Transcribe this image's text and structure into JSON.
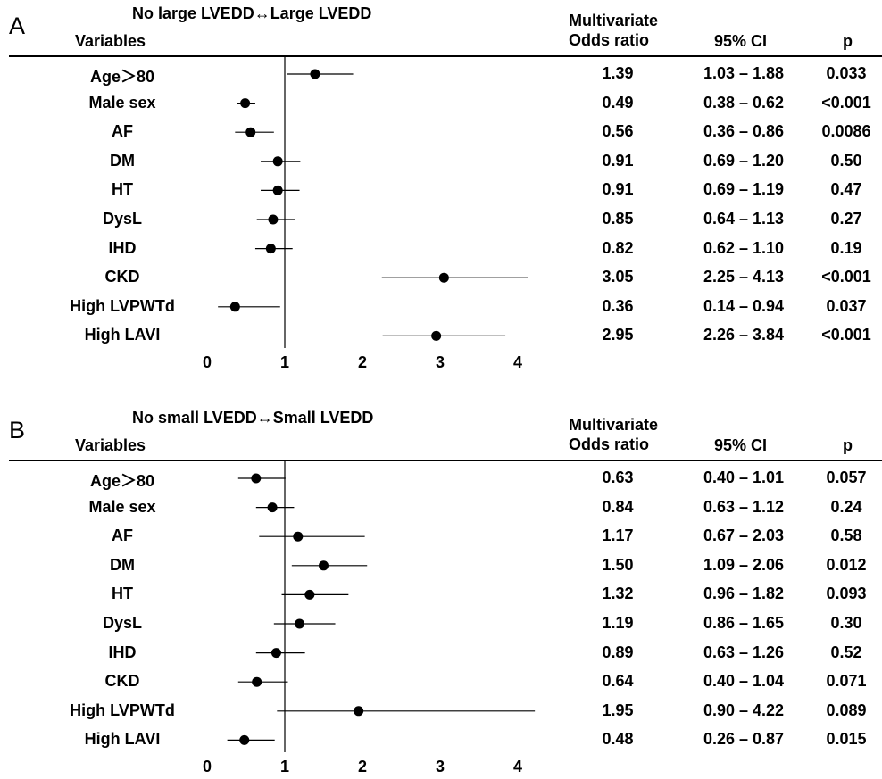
{
  "panels": [
    {
      "letter": "A",
      "title": "No large LVEDD↔Large LVEDD",
      "headers": {
        "variables": "Variables",
        "or_line1": "Multivariate",
        "or_line2": "Odds ratio",
        "ci": "95% CI",
        "p": "p"
      },
      "rows": [
        {
          "variable": "Age＞80",
          "or": "1.39",
          "ci": "1.03 – 1.88",
          "p": "0.033"
        },
        {
          "variable": "Male sex",
          "or": "0.49",
          "ci": "0.38 – 0.62",
          "p": "<0.001"
        },
        {
          "variable": "AF",
          "or": "0.56",
          "ci": "0.36 – 0.86",
          "p": "0.0086"
        },
        {
          "variable": "DM",
          "or": "0.91",
          "ci": "0.69 – 1.20",
          "p": "0.50"
        },
        {
          "variable": "HT",
          "or": "0.91",
          "ci": "0.69 – 1.19",
          "p": "0.47"
        },
        {
          "variable": "DysL",
          "or": "0.85",
          "ci": "0.64 – 1.13",
          "p": "0.27"
        },
        {
          "variable": "IHD",
          "or": "0.82",
          "ci": "0.62 – 1.10",
          "p": "0.19"
        },
        {
          "variable": "CKD",
          "or": "3.05",
          "ci": "2.25 – 4.13",
          "p": "<0.001"
        },
        {
          "variable": "High LVPWTd",
          "or": "0.36",
          "ci": "0.14 – 0.94",
          "p": "0.037"
        },
        {
          "variable": "High LAVI",
          "or": "2.95",
          "ci": "2.26 – 3.84",
          "p": "<0.001"
        }
      ]
    },
    {
      "letter": "B",
      "title": "No small LVEDD↔Small LVEDD",
      "headers": {
        "variables": "Variables",
        "or_line1": "Multivariate",
        "or_line2": "Odds ratio",
        "ci": "95% CI",
        "p": "p"
      },
      "rows": [
        {
          "variable": "Age＞80",
          "or": "0.63",
          "ci": "0.40 – 1.01",
          "p": "0.057"
        },
        {
          "variable": "Male sex",
          "or": "0.84",
          "ci": "0.63 – 1.12",
          "p": "0.24"
        },
        {
          "variable": "AF",
          "or": "1.17",
          "ci": "0.67 – 2.03",
          "p": "0.58"
        },
        {
          "variable": "DM",
          "or": "1.50",
          "ci": "1.09 – 2.06",
          "p": "0.012"
        },
        {
          "variable": "HT",
          "or": "1.32",
          "ci": "0.96 – 1.82",
          "p": "0.093"
        },
        {
          "variable": "DysL",
          "or": "1.19",
          "ci": "0.86 – 1.65",
          "p": "0.30"
        },
        {
          "variable": "IHD",
          "or": "0.89",
          "ci": "0.63 – 1.26",
          "p": "0.52"
        },
        {
          "variable": "CKD",
          "or": "0.64",
          "ci": "0.40 – 1.04",
          "p": "0.071"
        },
        {
          "variable": "High LVPWTd",
          "or": "1.95",
          "ci": "0.90 – 4.22",
          "p": "0.089"
        },
        {
          "variable": "High LAVI",
          "or": "0.48",
          "ci": "0.26 – 0.87",
          "p": "0.015"
        }
      ]
    }
  ],
  "chart_data": [
    {
      "type": "forest",
      "title": "No large LVEDD↔Large LVEDD",
      "categories": [
        "Age＞80",
        "Male sex",
        "AF",
        "DM",
        "HT",
        "DysL",
        "IHD",
        "CKD",
        "High LVPWTd",
        "High LAVI"
      ],
      "values": [
        1.39,
        0.49,
        0.56,
        0.91,
        0.91,
        0.85,
        0.82,
        3.05,
        0.36,
        2.95
      ],
      "ci_lower": [
        1.03,
        0.38,
        0.36,
        0.69,
        0.69,
        0.64,
        0.62,
        2.25,
        0.14,
        2.26
      ],
      "ci_upper": [
        1.88,
        0.62,
        0.86,
        1.2,
        1.19,
        1.13,
        1.1,
        4.13,
        0.94,
        3.84
      ],
      "reference_line": 1,
      "xlim": [
        0,
        4
      ],
      "xticks": [
        "0",
        "1",
        "2",
        "3",
        "4"
      ]
    },
    {
      "type": "forest",
      "title": "No small LVEDD↔Small LVEDD",
      "categories": [
        "Age＞80",
        "Male sex",
        "AF",
        "DM",
        "HT",
        "DysL",
        "IHD",
        "CKD",
        "High LVPWTd",
        "High LAVI"
      ],
      "values": [
        0.63,
        0.84,
        1.17,
        1.5,
        1.32,
        1.19,
        0.89,
        0.64,
        1.95,
        0.48
      ],
      "ci_lower": [
        0.4,
        0.63,
        0.67,
        1.09,
        0.96,
        0.86,
        0.63,
        0.4,
        0.9,
        0.26
      ],
      "ci_upper": [
        1.01,
        1.12,
        2.03,
        2.06,
        1.82,
        1.65,
        1.26,
        1.04,
        4.22,
        0.87
      ],
      "reference_line": 1,
      "xlim": [
        0,
        4
      ],
      "xticks": [
        "0",
        "1",
        "2",
        "3",
        "4"
      ]
    }
  ]
}
